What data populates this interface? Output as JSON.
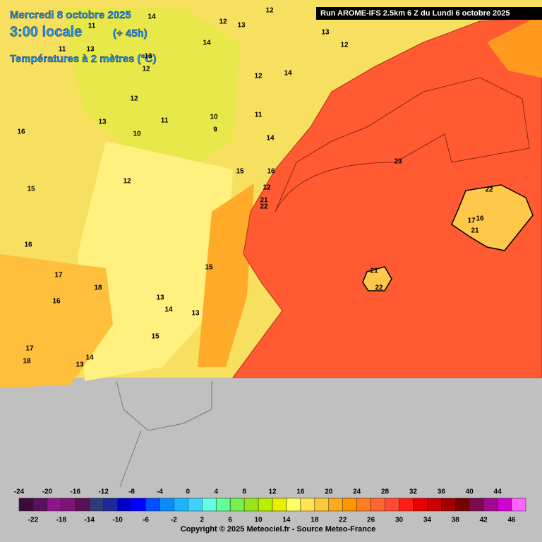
{
  "header": {
    "date": "Mercredi 8 octobre 2025",
    "time": "3:00 locale",
    "lead": "(+ 45h)",
    "field": "Températures à 2 mètres (°C)",
    "run": "Run AROME-IFS 2.5km 6 Z du Lundi 6 octobre 2025"
  },
  "map_labels": [
    14,
    12,
    13,
    12,
    11,
    13,
    12,
    14,
    11,
    13,
    13,
    12,
    14,
    12,
    12,
    13,
    11,
    10,
    9,
    10,
    11,
    16,
    14,
    15,
    16,
    12,
    15,
    12,
    21,
    22,
    16,
    15,
    17,
    18,
    13,
    16,
    14,
    13,
    15,
    17,
    18,
    14,
    13,
    23,
    22,
    17,
    16,
    21,
    21,
    22
  ],
  "legend": {
    "ticks": [
      -24,
      -22,
      -20,
      -18,
      -16,
      -14,
      -12,
      -10,
      -8,
      -6,
      -4,
      -2,
      0,
      2,
      4,
      6,
      8,
      10,
      12,
      14,
      16,
      18,
      20,
      22,
      24,
      26,
      28,
      30,
      32,
      34,
      36,
      38,
      40,
      42,
      44,
      46
    ],
    "colors": [
      "#3c0a3c",
      "#5a0f5a",
      "#8c148c",
      "#7d1478",
      "#5a0f50",
      "#2d3c78",
      "#1e2896",
      "#0000c8",
      "#0000ff",
      "#0050ff",
      "#0a8cff",
      "#1eb4ff",
      "#3cd2ff",
      "#64ffe6",
      "#64ff96",
      "#78f050",
      "#96e61e",
      "#b4f000",
      "#e6f000",
      "#ffff64",
      "#ffe650",
      "#ffc83c",
      "#ffaa1e",
      "#ff9600",
      "#ff7d1e",
      "#ff6432",
      "#ff4b32",
      "#ff1e14",
      "#e60000",
      "#c80000",
      "#a00000",
      "#780000",
      "#7d0a50",
      "#a00a8c",
      "#d200d2",
      "#ff64ff"
    ]
  },
  "footer": {
    "copyright": "Copyright © 2025 Meteociel.fr - Source Meteo-France"
  }
}
